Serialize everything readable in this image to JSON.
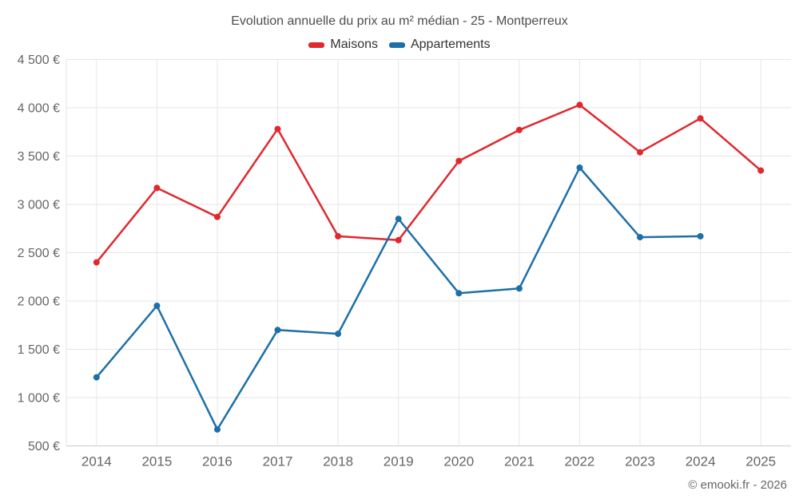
{
  "chart_data": {
    "type": "line",
    "title": "Evolution annuelle du prix au m² médian - 25 - Montperreux",
    "categories": [
      "2014",
      "2015",
      "2016",
      "2017",
      "2018",
      "2019",
      "2020",
      "2021",
      "2022",
      "2023",
      "2024",
      "2025"
    ],
    "series": [
      {
        "name": "Maisons",
        "color": "#e0282e",
        "values": [
          2400,
          3170,
          2870,
          3780,
          2670,
          2630,
          3450,
          3770,
          4030,
          3540,
          3890,
          3350
        ]
      },
      {
        "name": "Appartements",
        "color": "#1d6fa8",
        "values": [
          1210,
          1950,
          670,
          1700,
          1660,
          2850,
          2080,
          2130,
          3380,
          2660,
          2670,
          null
        ]
      }
    ],
    "ylim": [
      500,
      4500
    ],
    "ytick_step": 500,
    "y_unit": "€",
    "grid": true,
    "legend_position": "top"
  },
  "footer": {
    "copyright": "© emooki.fr - 2026"
  },
  "colors": {
    "background": "#ffffff",
    "grid": "#e6e6e6",
    "axis": "#cccccc",
    "title_text": "#4d4d4d",
    "tick_text": "#666666",
    "legend_text": "#333333"
  }
}
